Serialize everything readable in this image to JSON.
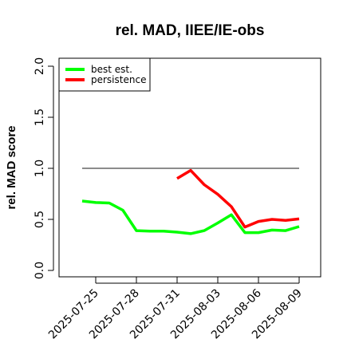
{
  "chart_data": {
    "type": "line",
    "title": "rel. MAD, IIEE/IE-obs",
    "xlabel": "",
    "ylabel": "rel. MAD score",
    "x": [
      "2025-07-24",
      "2025-07-25",
      "2025-07-26",
      "2025-07-27",
      "2025-07-28",
      "2025-07-29",
      "2025-07-30",
      "2025-07-31",
      "2025-08-01",
      "2025-08-02",
      "2025-08-03",
      "2025-08-04",
      "2025-08-05",
      "2025-08-06",
      "2025-08-07",
      "2025-08-08",
      "2025-08-09"
    ],
    "x_ticks": [
      "2025-07-25",
      "2025-07-28",
      "2025-07-31",
      "2025-08-03",
      "2025-08-06",
      "2025-08-09"
    ],
    "ylim": [
      0,
      2
    ],
    "y_ticks": [
      "0.0",
      "0.5",
      "1.0",
      "1.5",
      "2.0"
    ],
    "reference_line": 1.0,
    "grid": false,
    "legend_position": "top-left",
    "series": [
      {
        "name": "best est.",
        "color": "#00ff00",
        "values": [
          0.68,
          0.665,
          0.66,
          0.59,
          0.39,
          0.385,
          0.385,
          0.375,
          0.36,
          0.39,
          0.465,
          0.545,
          0.37,
          0.37,
          0.395,
          0.39,
          0.43
        ]
      },
      {
        "name": "persistence",
        "color": "#ff0000",
        "values": [
          null,
          null,
          null,
          null,
          null,
          null,
          null,
          0.9,
          0.98,
          0.84,
          0.745,
          0.625,
          0.425,
          0.48,
          0.5,
          0.49,
          0.505
        ]
      }
    ]
  }
}
